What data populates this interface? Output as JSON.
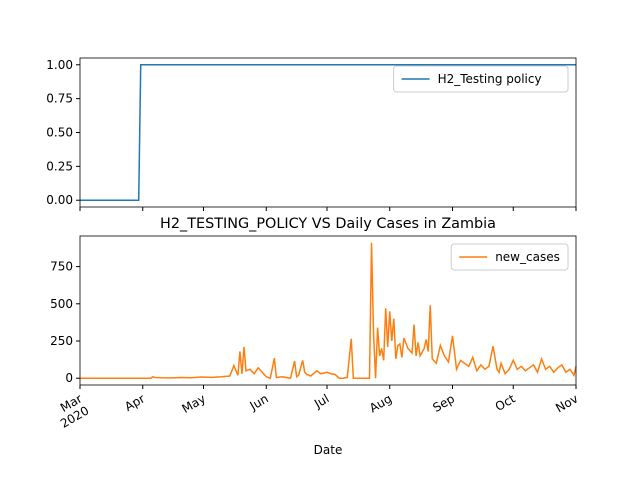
{
  "chart_data": [
    {
      "type": "line",
      "x": [
        0,
        29,
        30,
        245
      ],
      "series": [
        {
          "name": "H2_Testing policy",
          "color": "#1f77b4",
          "values": [
            0,
            0,
            1,
            1
          ]
        }
      ],
      "xlim": [
        0,
        245
      ],
      "xticks": [
        0,
        31,
        61,
        92,
        122,
        153,
        184,
        214,
        245
      ],
      "ylim": [
        -0.05,
        1.05
      ],
      "yticks": [
        {
          "value": 0,
          "label": "0.00"
        },
        {
          "value": 0.25,
          "label": "0.25"
        },
        {
          "value": 0.5,
          "label": "0.50"
        },
        {
          "value": 0.75,
          "label": "0.75"
        },
        {
          "value": 1,
          "label": "1.00"
        }
      ],
      "legend": "upper right"
    },
    {
      "type": "line",
      "title": "H2_TESTING_POLICY VS Daily Cases in Zambia",
      "x_label": "Date",
      "x": [
        0,
        10,
        20,
        30,
        35,
        36,
        37,
        40,
        45,
        50,
        55,
        60,
        65,
        70,
        74,
        76,
        78,
        79,
        80,
        81,
        82,
        84,
        86,
        88,
        90,
        92,
        94,
        96,
        97,
        100,
        104,
        106,
        107,
        108,
        110,
        111,
        112,
        114,
        117,
        119,
        122,
        124,
        126,
        128,
        130,
        132,
        134,
        135,
        137,
        140,
        142,
        143,
        144,
        145,
        146,
        147,
        148,
        149,
        150,
        151,
        152,
        153,
        154,
        155,
        156,
        157,
        158,
        159,
        160,
        162,
        164,
        165,
        166,
        167,
        168,
        170,
        171,
        172,
        173,
        174,
        176,
        178,
        180,
        182,
        184,
        186,
        188,
        190,
        192,
        194,
        196,
        198,
        200,
        202,
        204,
        206,
        207,
        208,
        210,
        212,
        214,
        216,
        218,
        220,
        222,
        224,
        226,
        228,
        230,
        232,
        234,
        236,
        238,
        240,
        242,
        244,
        245
      ],
      "series": [
        {
          "name": "new_cases",
          "color": "#ff7f0e",
          "values": [
            0,
            0,
            0,
            0,
            0,
            10,
            5,
            3,
            2,
            5,
            3,
            8,
            6,
            10,
            15,
            85,
            20,
            180,
            30,
            210,
            50,
            60,
            30,
            70,
            40,
            10,
            0,
            135,
            5,
            10,
            0,
            115,
            10,
            20,
            120,
            40,
            25,
            15,
            50,
            30,
            40,
            30,
            25,
            0,
            0,
            5,
            265,
            0,
            0,
            0,
            0,
            0,
            910,
            300,
            0,
            340,
            150,
            200,
            120,
            470,
            210,
            450,
            250,
            400,
            130,
            220,
            230,
            140,
            270,
            200,
            170,
            360,
            150,
            240,
            150,
            200,
            260,
            180,
            490,
            130,
            100,
            220,
            150,
            110,
            285,
            60,
            120,
            100,
            80,
            140,
            50,
            90,
            60,
            80,
            215,
            60,
            40,
            100,
            30,
            60,
            120,
            60,
            80,
            50,
            70,
            90,
            40,
            130,
            60,
            80,
            40,
            70,
            90,
            40,
            60,
            20,
            80
          ]
        }
      ],
      "xlim": [
        0,
        245
      ],
      "xticks": [
        {
          "value": 0,
          "label": "Mar\n2020"
        },
        {
          "value": 31,
          "label": "Apr"
        },
        {
          "value": 61,
          "label": "May"
        },
        {
          "value": 92,
          "label": "Jun"
        },
        {
          "value": 122,
          "label": "Jul"
        },
        {
          "value": 153,
          "label": "Aug"
        },
        {
          "value": 184,
          "label": "Sep"
        },
        {
          "value": 214,
          "label": "Oct"
        },
        {
          "value": 245,
          "label": "Nov"
        }
      ],
      "ylim": [
        -45.5,
        955.5
      ],
      "yticks": [
        0,
        250,
        500,
        750
      ],
      "legend": "upper right"
    }
  ]
}
